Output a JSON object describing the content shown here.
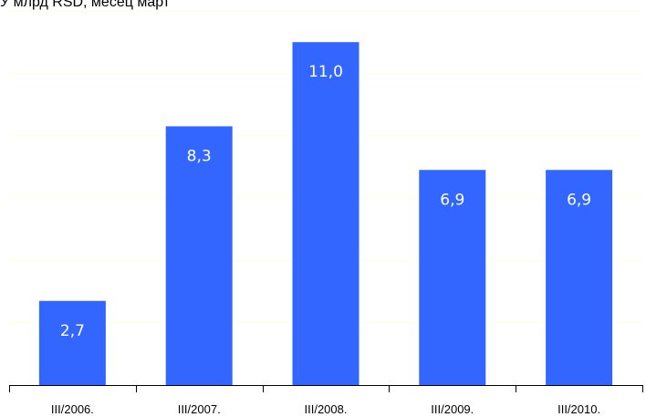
{
  "chart_data": {
    "type": "bar",
    "title": "У млрд RSD, месец март",
    "categories": [
      "III/2006.",
      "III/2007.",
      "III/2008.",
      "III/2009.",
      "III/2010."
    ],
    "values": [
      2.7,
      8.3,
      11.0,
      6.9,
      6.9
    ],
    "value_labels": [
      "2,7",
      "8,3",
      "11,0",
      "6,9",
      "6,9"
    ],
    "xlabel": "",
    "ylabel": "",
    "ylim": [
      0,
      12
    ],
    "grid": true,
    "legend": "none",
    "colors": {
      "bar": "#3366FF",
      "gridline": "#FFFFE0",
      "axis": "#000000"
    }
  }
}
